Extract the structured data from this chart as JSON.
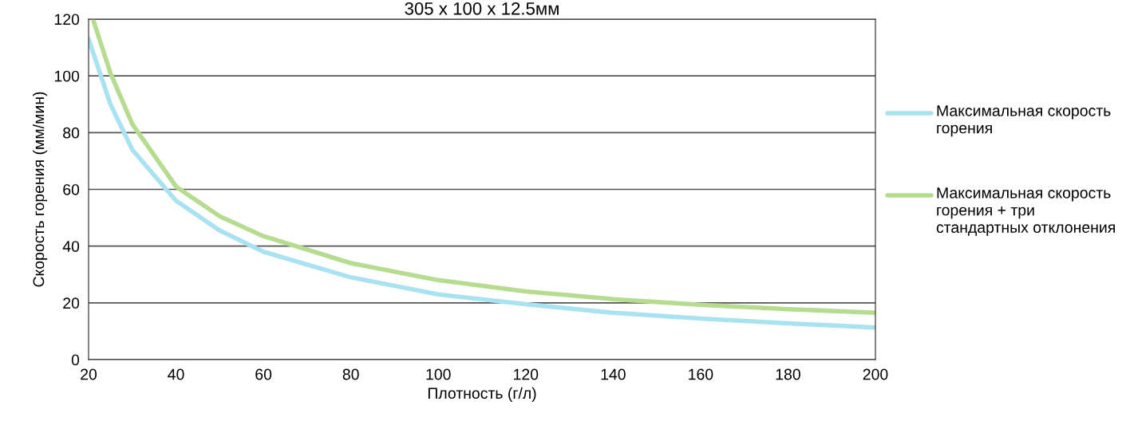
{
  "chart_data": {
    "type": "line",
    "title": "305 x 100 x 12.5мм",
    "xlabel": "Плотность (г/л)",
    "ylabel": "Скорость горения (мм/мин)",
    "x": [
      20,
      25,
      30,
      40,
      50,
      60,
      80,
      100,
      120,
      140,
      160,
      180,
      200
    ],
    "series": [
      {
        "name": "Максимальная скорость горения",
        "color": "#a9e3f2",
        "values": [
          113,
          90,
          74,
          56,
          45.5,
          38,
          29,
          23,
          19.5,
          16.5,
          14.5,
          12.8,
          11.3
        ]
      },
      {
        "name": "Максимальная скорость горения + три стандартных отклонения",
        "color": "#b5dc8f",
        "x": [
          21,
          25,
          30,
          40,
          50,
          60,
          80,
          100,
          120,
          140,
          160,
          180,
          200
        ],
        "values": [
          120,
          101,
          83,
          61,
          50.5,
          43.5,
          34,
          28,
          24,
          21.3,
          19.3,
          17.8,
          16.5
        ]
      }
    ],
    "xlim": [
      20,
      200
    ],
    "xticks": [
      20,
      40,
      60,
      80,
      100,
      120,
      140,
      160,
      180,
      200
    ],
    "ylim": [
      0,
      120
    ],
    "yticks": [
      0,
      20,
      40,
      60,
      80,
      100,
      120
    ],
    "grid": "y",
    "legend": "right",
    "line_style": "solid",
    "marker": "none"
  }
}
